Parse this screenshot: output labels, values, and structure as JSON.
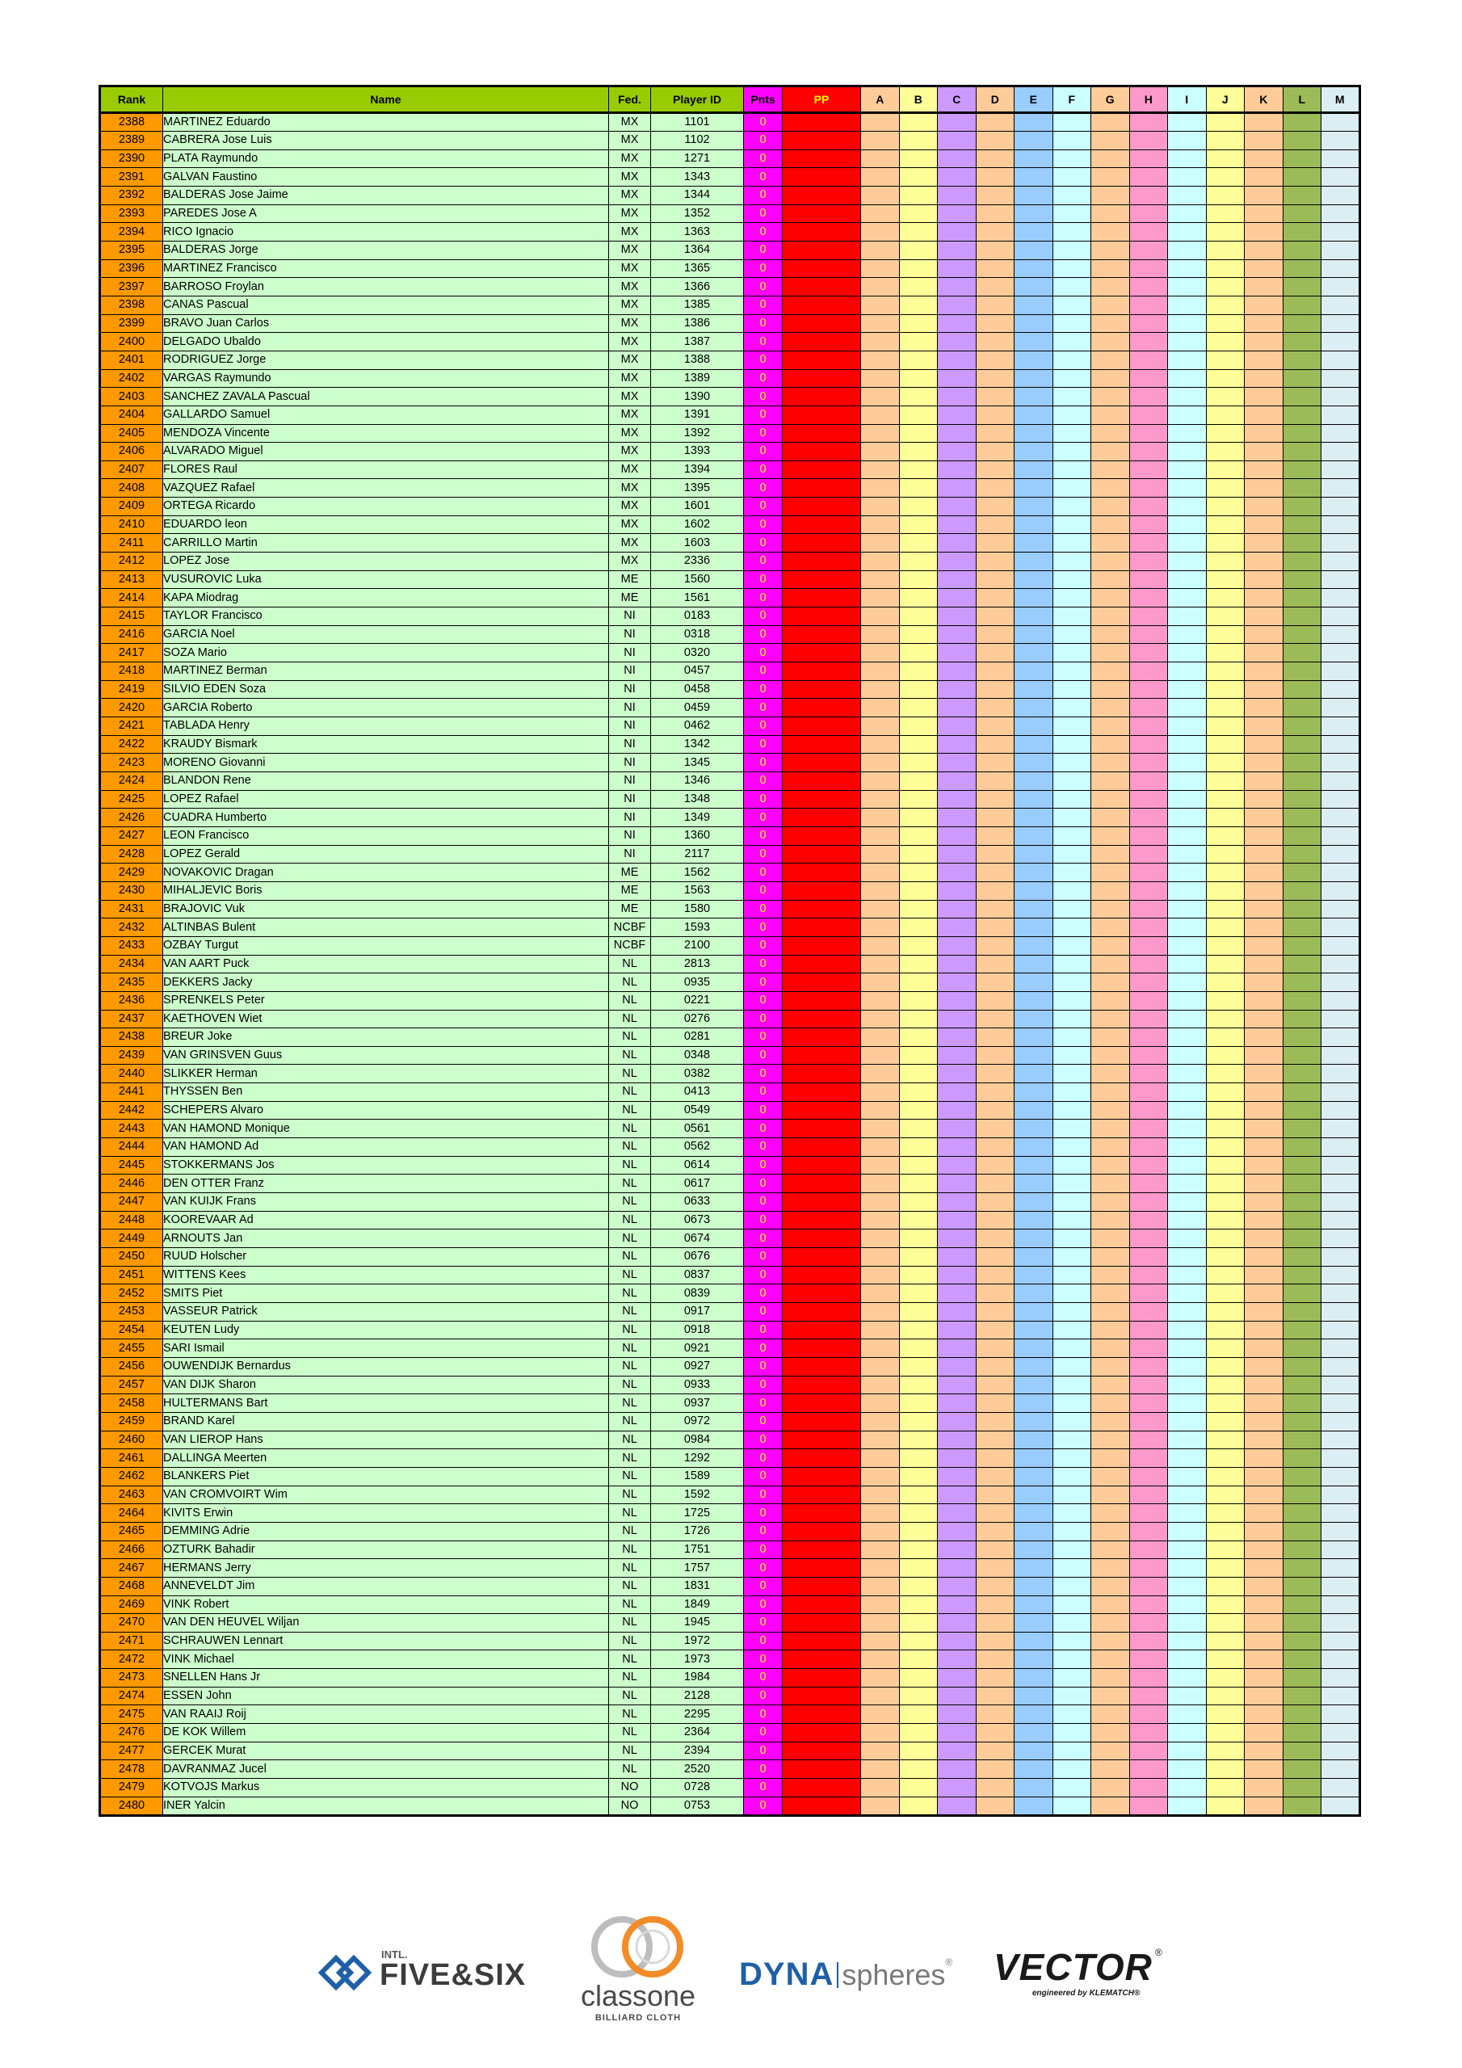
{
  "table": {
    "headers": {
      "rank": "Rank",
      "name": "Name",
      "fed": "Fed.",
      "player_id": "Player ID",
      "pnts": "Pnts",
      "pp": "PP",
      "letters": [
        "A",
        "B",
        "C",
        "D",
        "E",
        "F",
        "G",
        "H",
        "I",
        "J",
        "K",
        "L",
        "M"
      ]
    },
    "rows": [
      [
        "2388",
        "MARTINEZ Eduardo",
        "MX",
        "1101",
        "0"
      ],
      [
        "2389",
        "CABRERA Jose Luis",
        "MX",
        "1102",
        "0"
      ],
      [
        "2390",
        "PLATA Raymundo",
        "MX",
        "1271",
        "0"
      ],
      [
        "2391",
        "GALVAN Faustino",
        "MX",
        "1343",
        "0"
      ],
      [
        "2392",
        "BALDERAS Jose Jaime",
        "MX",
        "1344",
        "0"
      ],
      [
        "2393",
        "PAREDES Jose A",
        "MX",
        "1352",
        "0"
      ],
      [
        "2394",
        "RICO Ignacio",
        "MX",
        "1363",
        "0"
      ],
      [
        "2395",
        "BALDERAS Jorge",
        "MX",
        "1364",
        "0"
      ],
      [
        "2396",
        "MARTINEZ Francisco",
        "MX",
        "1365",
        "0"
      ],
      [
        "2397",
        "BARROSO Froylan",
        "MX",
        "1366",
        "0"
      ],
      [
        "2398",
        "CANAS Pascual",
        "MX",
        "1385",
        "0"
      ],
      [
        "2399",
        "BRAVO Juan Carlos",
        "MX",
        "1386",
        "0"
      ],
      [
        "2400",
        "DELGADO Ubaldo",
        "MX",
        "1387",
        "0"
      ],
      [
        "2401",
        "RODRIGUEZ Jorge",
        "MX",
        "1388",
        "0"
      ],
      [
        "2402",
        "VARGAS Raymundo",
        "MX",
        "1389",
        "0"
      ],
      [
        "2403",
        "SANCHEZ ZAVALA Pascual",
        "MX",
        "1390",
        "0"
      ],
      [
        "2404",
        "GALLARDO Samuel",
        "MX",
        "1391",
        "0"
      ],
      [
        "2405",
        "MENDOZA Vincente",
        "MX",
        "1392",
        "0"
      ],
      [
        "2406",
        "ALVARADO Miguel",
        "MX",
        "1393",
        "0"
      ],
      [
        "2407",
        "FLORES Raul",
        "MX",
        "1394",
        "0"
      ],
      [
        "2408",
        "VAZQUEZ Rafael",
        "MX",
        "1395",
        "0"
      ],
      [
        "2409",
        "ORTEGA Ricardo",
        "MX",
        "1601",
        "0"
      ],
      [
        "2410",
        "EDUARDO leon",
        "MX",
        "1602",
        "0"
      ],
      [
        "2411",
        "CARRILLO Martin",
        "MX",
        "1603",
        "0"
      ],
      [
        "2412",
        "LOPEZ Jose",
        "MX",
        "2336",
        "0"
      ],
      [
        "2413",
        "VUSUROVIC Luka",
        "ME",
        "1560",
        "0"
      ],
      [
        "2414",
        "KAPA Miodrag",
        "ME",
        "1561",
        "0"
      ],
      [
        "2415",
        "TAYLOR Francisco",
        "NI",
        "0183",
        "0"
      ],
      [
        "2416",
        "GARCIA Noel",
        "NI",
        "0318",
        "0"
      ],
      [
        "2417",
        "SOZA Mario",
        "NI",
        "0320",
        "0"
      ],
      [
        "2418",
        "MARTINEZ Berman",
        "NI",
        "0457",
        "0"
      ],
      [
        "2419",
        "SILVIO EDEN Soza",
        "NI",
        "0458",
        "0"
      ],
      [
        "2420",
        "GARCIA Roberto",
        "NI",
        "0459",
        "0"
      ],
      [
        "2421",
        "TABLADA Henry",
        "NI",
        "0462",
        "0"
      ],
      [
        "2422",
        "KRAUDY Bismark",
        "NI",
        "1342",
        "0"
      ],
      [
        "2423",
        "MORENO Giovanni",
        "NI",
        "1345",
        "0"
      ],
      [
        "2424",
        "BLANDON Rene",
        "NI",
        "1346",
        "0"
      ],
      [
        "2425",
        "LOPEZ Rafael",
        "NI",
        "1348",
        "0"
      ],
      [
        "2426",
        "CUADRA Humberto",
        "NI",
        "1349",
        "0"
      ],
      [
        "2427",
        "LEON Francisco",
        "NI",
        "1360",
        "0"
      ],
      [
        "2428",
        "LOPEZ Gerald",
        "NI",
        "2117",
        "0"
      ],
      [
        "2429",
        "NOVAKOVIC Dragan",
        "ME",
        "1562",
        "0"
      ],
      [
        "2430",
        "MIHALJEVIC Boris",
        "ME",
        "1563",
        "0"
      ],
      [
        "2431",
        "BRAJOVIC Vuk",
        "ME",
        "1580",
        "0"
      ],
      [
        "2432",
        "ALTINBAS Bulent",
        "NCBF",
        "1593",
        "0"
      ],
      [
        "2433",
        "OZBAY Turgut",
        "NCBF",
        "2100",
        "0"
      ],
      [
        "2434",
        "VAN AART Puck",
        "NL",
        "2813",
        "0"
      ],
      [
        "2435",
        "DEKKERS Jacky",
        "NL",
        "0935",
        "0"
      ],
      [
        "2436",
        "SPRENKELS Peter",
        "NL",
        "0221",
        "0"
      ],
      [
        "2437",
        "KAETHOVEN Wiet",
        "NL",
        "0276",
        "0"
      ],
      [
        "2438",
        "BREUR Joke",
        "NL",
        "0281",
        "0"
      ],
      [
        "2439",
        "VAN GRINSVEN Guus",
        "NL",
        "0348",
        "0"
      ],
      [
        "2440",
        "SLIKKER Herman",
        "NL",
        "0382",
        "0"
      ],
      [
        "2441",
        "THYSSEN Ben",
        "NL",
        "0413",
        "0"
      ],
      [
        "2442",
        "SCHEPERS Alvaro",
        "NL",
        "0549",
        "0"
      ],
      [
        "2443",
        "VAN HAMOND Monique",
        "NL",
        "0561",
        "0"
      ],
      [
        "2444",
        "VAN HAMOND Ad",
        "NL",
        "0562",
        "0"
      ],
      [
        "2445",
        "STOKKERMANS Jos",
        "NL",
        "0614",
        "0"
      ],
      [
        "2446",
        "DEN OTTER Franz",
        "NL",
        "0617",
        "0"
      ],
      [
        "2447",
        "VAN KUIJK Frans",
        "NL",
        "0633",
        "0"
      ],
      [
        "2448",
        "KOOREVAAR Ad",
        "NL",
        "0673",
        "0"
      ],
      [
        "2449",
        "ARNOUTS Jan",
        "NL",
        "0674",
        "0"
      ],
      [
        "2450",
        "RUUD Holscher",
        "NL",
        "0676",
        "0"
      ],
      [
        "2451",
        "WITTENS Kees",
        "NL",
        "0837",
        "0"
      ],
      [
        "2452",
        "SMITS Piet",
        "NL",
        "0839",
        "0"
      ],
      [
        "2453",
        "VASSEUR Patrick",
        "NL",
        "0917",
        "0"
      ],
      [
        "2454",
        "KEUTEN Ludy",
        "NL",
        "0918",
        "0"
      ],
      [
        "2455",
        "SARI Ismail",
        "NL",
        "0921",
        "0"
      ],
      [
        "2456",
        "OUWENDIJK Bernardus",
        "NL",
        "0927",
        "0"
      ],
      [
        "2457",
        "VAN DIJK Sharon",
        "NL",
        "0933",
        "0"
      ],
      [
        "2458",
        "HULTERMANS Bart",
        "NL",
        "0937",
        "0"
      ],
      [
        "2459",
        "BRAND Karel",
        "NL",
        "0972",
        "0"
      ],
      [
        "2460",
        "VAN LIEROP Hans",
        "NL",
        "0984",
        "0"
      ],
      [
        "2461",
        "DALLINGA Meerten",
        "NL",
        "1292",
        "0"
      ],
      [
        "2462",
        "BLANKERS Piet",
        "NL",
        "1589",
        "0"
      ],
      [
        "2463",
        "VAN CROMVOIRT Wim",
        "NL",
        "1592",
        "0"
      ],
      [
        "2464",
        "KIVITS Erwin",
        "NL",
        "1725",
        "0"
      ],
      [
        "2465",
        "DEMMING Adrie",
        "NL",
        "1726",
        "0"
      ],
      [
        "2466",
        "OZTURK Bahadir",
        "NL",
        "1751",
        "0"
      ],
      [
        "2467",
        "HERMANS Jerry",
        "NL",
        "1757",
        "0"
      ],
      [
        "2468",
        "ANNEVELDT Jim",
        "NL",
        "1831",
        "0"
      ],
      [
        "2469",
        "VINK Robert",
        "NL",
        "1849",
        "0"
      ],
      [
        "2470",
        "VAN DEN HEUVEL Wiljan",
        "NL",
        "1945",
        "0"
      ],
      [
        "2471",
        "SCHRAUWEN Lennart",
        "NL",
        "1972",
        "0"
      ],
      [
        "2472",
        "VINK Michael",
        "NL",
        "1973",
        "0"
      ],
      [
        "2473",
        "SNELLEN Hans Jr",
        "NL",
        "1984",
        "0"
      ],
      [
        "2474",
        "ESSEN John",
        "NL",
        "2128",
        "0"
      ],
      [
        "2475",
        "VAN RAAIJ Roij",
        "NL",
        "2295",
        "0"
      ],
      [
        "2476",
        "DE KOK Willem",
        "NL",
        "2364",
        "0"
      ],
      [
        "2477",
        "GERCEK Murat",
        "NL",
        "2394",
        "0"
      ],
      [
        "2478",
        "DAVRANMAZ Jucel",
        "NL",
        "2520",
        "0"
      ],
      [
        "2479",
        "KOTVOJS Markus",
        "NO",
        "0728",
        "0"
      ],
      [
        "2480",
        "INER Yalcin",
        "NO",
        "0753",
        "0"
      ]
    ]
  },
  "sponsors": {
    "five_six": {
      "small": "INTL.",
      "main": "FIVE&SIX"
    },
    "classone": {
      "main": "classone",
      "sub": "BILLIARD CLOTH"
    },
    "dyna": {
      "bold": "DYNA",
      "thin": "spheres",
      "mark": "®"
    },
    "vector": {
      "main": "VECTOR",
      "mark": "®",
      "sub": "engineered by KLEMATCH®"
    }
  },
  "colors": {
    "header_green": "#99cc00",
    "rank": "#ff9900",
    "row_green": "#ccffcc",
    "pnts": "#ff00ff",
    "pp": "#ff0000",
    "dyna_blue": "#1f5fa8",
    "classone_orange": "#f28c28"
  }
}
